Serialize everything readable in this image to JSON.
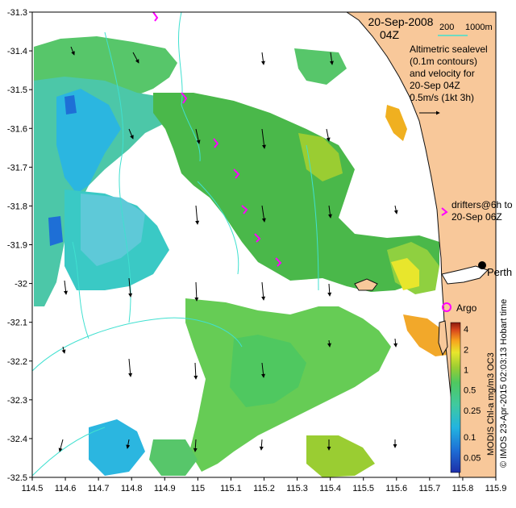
{
  "map": {
    "date_title": "20-Sep-2008",
    "time_title": "04Z",
    "scale_bar": {
      "label_left": "200",
      "label_right": "1000m",
      "color": "#40e0d0"
    },
    "legend_text": [
      "Altimetric sealevel",
      "(0.1m contours)",
      "and velocity for",
      "20-Sep 04Z",
      "0.5m/s (1kt 3h)"
    ],
    "drifters_text": [
      "drifters@6h to",
      "20-Sep 06Z"
    ],
    "place_labels": {
      "city": "Perth",
      "argo": "Argo"
    },
    "credit": "© IMOS 23-Apr-2015 02:03:13 Hobart time",
    "colorbar_title": "MODIS Chl-a mg/m3 OC3",
    "colorbar_ticks": [
      "4",
      "2",
      "1",
      "0.5",
      "0.25",
      "0.1",
      "0.05"
    ],
    "x_axis": {
      "ticks": [
        "114.5",
        "114.6",
        "114.7",
        "114.8",
        "114.9",
        "115",
        "115.1",
        "115.2",
        "115.3",
        "115.4",
        "115.5",
        "115.6",
        "115.7",
        "115.8",
        "115.9"
      ],
      "range": [
        114.5,
        115.9
      ]
    },
    "y_axis": {
      "ticks": [
        "-31.3",
        "-31.4",
        "-31.5",
        "-31.6",
        "-31.7",
        "-31.8",
        "-31.9",
        "-32",
        "-32.1",
        "-32.2",
        "-32.3",
        "-32.4",
        "-32.5"
      ],
      "range": [
        -32.5,
        -31.3
      ]
    },
    "colors": {
      "land": "#f8c89a",
      "coast": "#111111",
      "contour": "#40e0d0",
      "drifter": "#ff00ff",
      "argo": "#ff00ff",
      "arrow": "#000000"
    }
  }
}
